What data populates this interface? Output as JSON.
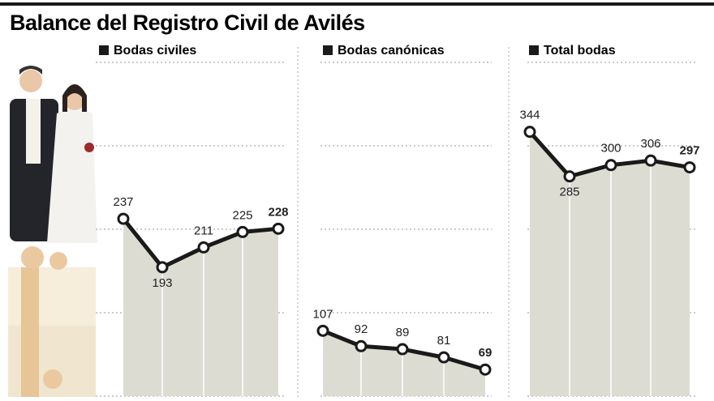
{
  "title": "Balance del Registro Civil de Avilés",
  "chart_data": [
    {
      "type": "line",
      "title": "Bodas civiles",
      "values": [
        237,
        193,
        211,
        225,
        228
      ],
      "ylim": [
        76,
        379
      ],
      "color": "#1a1a1a",
      "area_color": "#dddcd3"
    },
    {
      "type": "line",
      "title": "Bodas canónicas",
      "values": [
        107,
        92,
        89,
        81,
        69
      ],
      "ylim": [
        43,
        370
      ],
      "color": "#1a1a1a",
      "area_color": "#dddcd3"
    },
    {
      "type": "line",
      "title": "Total bodas",
      "values": [
        344,
        285,
        300,
        306,
        297
      ],
      "ylim": [
        -6,
        436
      ],
      "color": "#1a1a1a",
      "area_color": "#dddcd3"
    }
  ]
}
